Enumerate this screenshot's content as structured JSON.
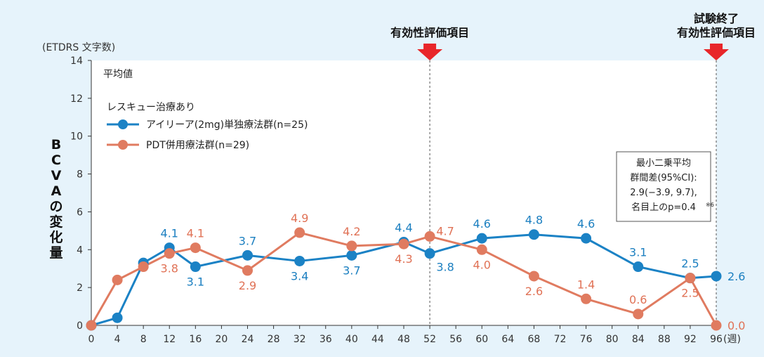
{
  "chart_data": {
    "type": "line",
    "y_unit": "(ETDRS 文字数)",
    "ylabel": "BCVAの変化量",
    "x_unit": "(週)",
    "xlim": [
      0,
      96
    ],
    "ylim": [
      0,
      14
    ],
    "x_ticks": [
      0,
      4,
      8,
      12,
      16,
      20,
      24,
      28,
      32,
      36,
      40,
      44,
      48,
      52,
      56,
      60,
      64,
      68,
      72,
      76,
      80,
      84,
      88,
      92,
      96
    ],
    "y_ticks": [
      0,
      2,
      4,
      6,
      8,
      10,
      12,
      14
    ],
    "legend": {
      "subtitle": "平均値",
      "group_title": "レスキュー治療あり",
      "placement": "top-left"
    },
    "series": [
      {
        "name": "アイリーア(2mg)単独療法群(n=25)",
        "color": "#1b82c5",
        "label_color": "#1b7fc0",
        "x": [
          0,
          4,
          8,
          12,
          16,
          24,
          32,
          40,
          48,
          52,
          60,
          68,
          76,
          84,
          92,
          96
        ],
        "y": [
          0,
          0.4,
          3.3,
          4.1,
          3.1,
          3.7,
          3.4,
          3.7,
          4.4,
          3.8,
          4.6,
          4.8,
          4.6,
          3.1,
          2.5,
          2.6
        ],
        "labels": [
          {
            "x": 12,
            "text": "4.1",
            "pos": "above"
          },
          {
            "x": 16,
            "text": "3.1",
            "pos": "below"
          },
          {
            "x": 24,
            "text": "3.7",
            "pos": "above"
          },
          {
            "x": 32,
            "text": "3.4",
            "pos": "below"
          },
          {
            "x": 40,
            "text": "3.7",
            "pos": "below"
          },
          {
            "x": 48,
            "text": "4.4",
            "pos": "above"
          },
          {
            "x": 52,
            "text": "3.8",
            "pos": "below-right"
          },
          {
            "x": 60,
            "text": "4.6",
            "pos": "above"
          },
          {
            "x": 68,
            "text": "4.8",
            "pos": "above"
          },
          {
            "x": 76,
            "text": "4.6",
            "pos": "above"
          },
          {
            "x": 84,
            "text": "3.1",
            "pos": "above"
          },
          {
            "x": 92,
            "text": "2.5",
            "pos": "above"
          },
          {
            "x": 96,
            "text": "2.6",
            "pos": "right"
          }
        ]
      },
      {
        "name": "PDT併用療法群(n=29)",
        "color": "#e07b60",
        "label_color": "#e07256",
        "x": [
          0,
          4,
          8,
          12,
          16,
          24,
          32,
          40,
          48,
          52,
          60,
          68,
          76,
          84,
          92,
          96
        ],
        "y": [
          0,
          2.4,
          3.1,
          3.8,
          4.1,
          2.9,
          4.9,
          4.2,
          4.3,
          4.7,
          4.0,
          2.6,
          1.4,
          0.6,
          2.5,
          0.0
        ],
        "labels": [
          {
            "x": 12,
            "text": "3.8",
            "pos": "below"
          },
          {
            "x": 16,
            "text": "4.1",
            "pos": "above"
          },
          {
            "x": 24,
            "text": "2.9",
            "pos": "below"
          },
          {
            "x": 32,
            "text": "4.9",
            "pos": "above"
          },
          {
            "x": 40,
            "text": "4.2",
            "pos": "above"
          },
          {
            "x": 48,
            "text": "4.3",
            "pos": "below"
          },
          {
            "x": 52,
            "text": "4.7",
            "pos": "above-right"
          },
          {
            "x": 60,
            "text": "4.0",
            "pos": "below"
          },
          {
            "x": 68,
            "text": "2.6",
            "pos": "below"
          },
          {
            "x": 76,
            "text": "1.4",
            "pos": "above"
          },
          {
            "x": 84,
            "text": "0.6",
            "pos": "above"
          },
          {
            "x": 92,
            "text": "2.5",
            "pos": "below"
          },
          {
            "x": 96,
            "text": "0.0",
            "pos": "right"
          }
        ]
      }
    ],
    "annotations": [
      {
        "x": 52,
        "lines": [
          "有効性評価項目"
        ]
      },
      {
        "x": 96,
        "lines": [
          "試験終了",
          "有効性評価項目"
        ]
      }
    ],
    "arrow_color": "#e8262a",
    "stats_box": {
      "lines": [
        "最小二乗平均",
        "群間差(95%CI):",
        "2.9(−3.9, 9.7),",
        "名目上のp=0.4"
      ],
      "footnote": "※6"
    }
  }
}
